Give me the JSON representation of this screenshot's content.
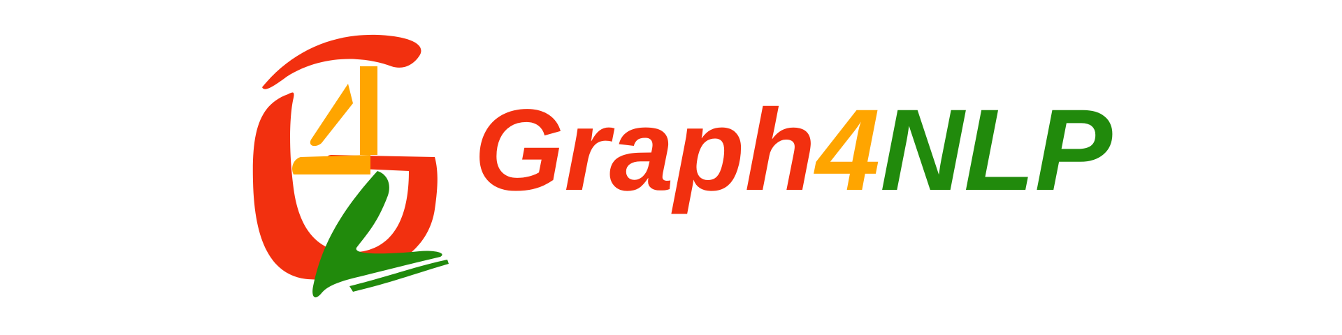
{
  "logo": {
    "parts": [
      {
        "text": "Graph",
        "color": "#f2300f"
      },
      {
        "text": "4",
        "color": "#ffa500"
      },
      {
        "text": "NLP",
        "color": "#218a0c"
      }
    ]
  }
}
